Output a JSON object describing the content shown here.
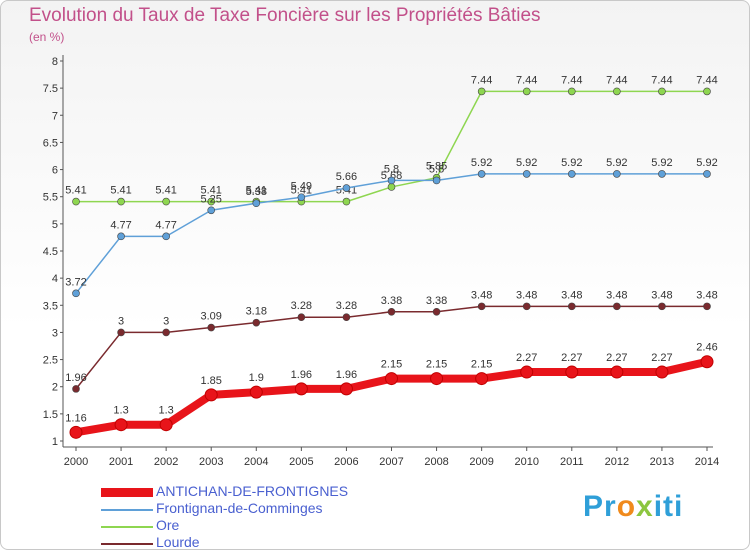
{
  "header": {
    "title": "Evolution du Taux de Taxe Foncière sur les Propriétés Bâties",
    "subtitle": "(en %)"
  },
  "logo": {
    "p1": "Pr",
    "p2": "o",
    "p3": "x",
    "p4": "iti"
  },
  "chart_data": {
    "type": "line",
    "title": "Evolution du Taux de Taxe Foncière sur les Propriétés Bâties",
    "ylabel": "(en %)",
    "xlabel": "",
    "x": [
      "2000",
      "2001",
      "2002",
      "2003",
      "2004",
      "2005",
      "2006",
      "2007",
      "2008",
      "2009",
      "2010",
      "2011",
      "2012",
      "2013",
      "2014"
    ],
    "ylim": [
      1,
      8
    ],
    "yticks": [
      "1",
      "1.5",
      "2",
      "2.5",
      "3",
      "3.5",
      "4",
      "4.5",
      "5",
      "5.5",
      "6",
      "6.5",
      "7",
      "7.5",
      "8"
    ],
    "grid": false,
    "legend_position": "bottom-left",
    "series": [
      {
        "name": "ANTICHAN-DE-FRONTIGNES",
        "color": "#e8141a",
        "values": [
          1.16,
          1.3,
          1.3,
          1.85,
          1.9,
          1.96,
          1.96,
          2.15,
          2.15,
          2.15,
          2.27,
          2.27,
          2.27,
          2.27,
          2.46
        ],
        "labels": [
          "1.16",
          "1.3",
          "1.3",
          "1.85",
          "1.9",
          "1.96",
          "1.96",
          "2.15",
          "2.15",
          "2.15",
          "2.27",
          "2.27",
          "2.27",
          "2.27",
          "2.46"
        ]
      },
      {
        "name": "Frontignan-de-Comminges",
        "color": "#5fa0d8",
        "values": [
          3.72,
          4.77,
          4.77,
          5.25,
          5.38,
          5.49,
          5.66,
          5.8,
          5.8,
          5.92,
          5.92,
          5.92,
          5.92,
          5.92,
          5.92
        ],
        "labels": [
          "3.72",
          "4.77",
          "4.77",
          "5.25",
          "5.38",
          "5.49",
          "5.66",
          "5.8",
          "5.8",
          "5.92",
          "5.92",
          "5.92",
          "5.92",
          "5.92",
          "5.92"
        ]
      },
      {
        "name": "Ore",
        "color": "#8ed650",
        "values": [
          5.41,
          5.41,
          5.41,
          5.41,
          5.41,
          5.41,
          5.41,
          5.68,
          5.85,
          7.44,
          7.44,
          7.44,
          7.44,
          7.44,
          7.44
        ],
        "labels": [
          "5.41",
          "5.41",
          "5.41",
          "5.41",
          "5.41",
          "5.41",
          "5.41",
          "5.68",
          "5.85",
          "7.44",
          "7.44",
          "7.44",
          "7.44",
          "7.44",
          "7.44"
        ]
      },
      {
        "name": "Lourde",
        "color": "#7a2a2e",
        "values": [
          1.96,
          3,
          3,
          3.09,
          3.18,
          3.28,
          3.28,
          3.38,
          3.38,
          3.48,
          3.48,
          3.48,
          3.48,
          3.48,
          3.48
        ],
        "labels": [
          "1.96",
          "3",
          "3",
          "3.09",
          "3.18",
          "3.28",
          "3.28",
          "3.38",
          "3.38",
          "3.48",
          "3.48",
          "3.48",
          "3.48",
          "3.48",
          "3.48"
        ]
      }
    ]
  }
}
